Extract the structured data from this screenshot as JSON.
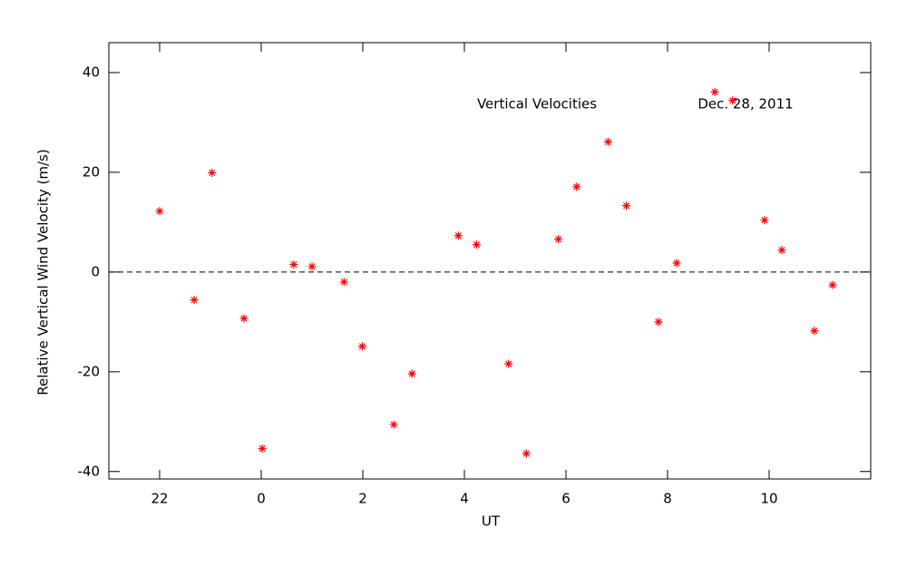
{
  "chart_data": {
    "type": "scatter",
    "x_label": "UT",
    "y_label": "Relative Vertical Wind Velocity (m/s)",
    "annotations": [
      "Vertical Velocities",
      "Dec. 28, 2011"
    ],
    "color": "#ff0000",
    "reference_line": 0,
    "xlim": [
      -3,
      12
    ],
    "xticks": [
      {
        "value": -2,
        "label": "22"
      },
      0,
      2,
      4,
      6,
      8,
      10
    ],
    "ylim": [
      -41.5,
      46
    ],
    "yticks": [
      -40,
      -20,
      0,
      20,
      40
    ],
    "x": [
      -2.0,
      -1.32,
      -0.97,
      -0.34,
      0.02,
      0.64,
      1.0,
      1.63,
      1.99,
      2.61,
      2.97,
      3.88,
      4.24,
      4.87,
      5.22,
      5.85,
      6.21,
      6.83,
      7.19,
      7.82,
      8.18,
      8.93,
      9.28,
      9.91,
      10.25,
      10.89,
      11.25
    ],
    "values": [
      12.2,
      -5.6,
      19.9,
      -9.3,
      -35.4,
      1.5,
      1.1,
      -2.0,
      -14.9,
      -30.6,
      -20.4,
      7.3,
      5.5,
      -18.4,
      -36.4,
      6.6,
      17.1,
      26.1,
      13.3,
      -10.0,
      1.8,
      36.1,
      34.4,
      10.4,
      4.4,
      -11.8,
      -2.6
    ]
  }
}
